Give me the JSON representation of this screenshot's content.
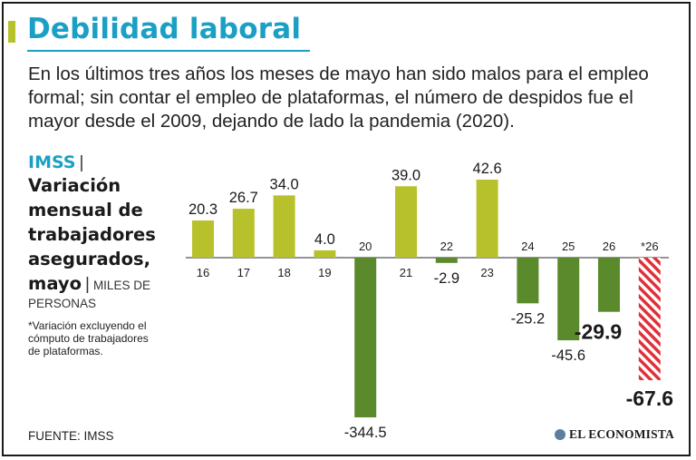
{
  "header": {
    "title": "Debilidad laboral",
    "description": "En los últimos tres años los meses de mayo han sido  malos para el empleo formal; sin contar el empleo de plataformas, el número de despidos fue el mayor desde el 2009, dejando de lado la pandemia (2020)."
  },
  "sidebar": {
    "source_label": "IMSS",
    "separator": "|",
    "subtitle": "Variación mensual de trabajadores asegurados, mayo",
    "units": "MILES DE PERSONAS",
    "note": "*Variación excluyendo el cómputo de trabajadores de plataformas."
  },
  "footer": {
    "source": "FUENTE: IMSS",
    "brand": "EL ECONOMISTA"
  },
  "colors": {
    "title_blue": "#1aa0c4",
    "positive_bar": "#b7c12b",
    "negative_bar": "#5b8a2c",
    "highlight_hatch": "#e0303a"
  },
  "chart_data": {
    "type": "bar",
    "categories": [
      "16",
      "17",
      "18",
      "19",
      "20",
      "21",
      "22",
      "23",
      "24",
      "25",
      "26",
      "*26"
    ],
    "values": [
      20.3,
      26.7,
      34.0,
      4.0,
      -344.5,
      39.0,
      -2.9,
      42.6,
      -25.2,
      -45.6,
      -29.9,
      -67.6
    ],
    "value_labels": [
      "20.3",
      "26.7",
      "34.0",
      "4.0",
      "-344.5",
      "39.0",
      "-2.9",
      "42.6",
      "-25.2",
      "-45.6",
      "-29.9",
      "-67.6"
    ],
    "title": "Variación mensual de trabajadores asegurados, mayo",
    "ylabel": "MILES DE PERSONAS",
    "scale_note": "eje y recortado en 20 (ruptura de escala)",
    "grid": false,
    "legend": "none",
    "highlight_categories": [
      "26",
      "*26"
    ],
    "hatched_categories": [
      "*26"
    ]
  }
}
